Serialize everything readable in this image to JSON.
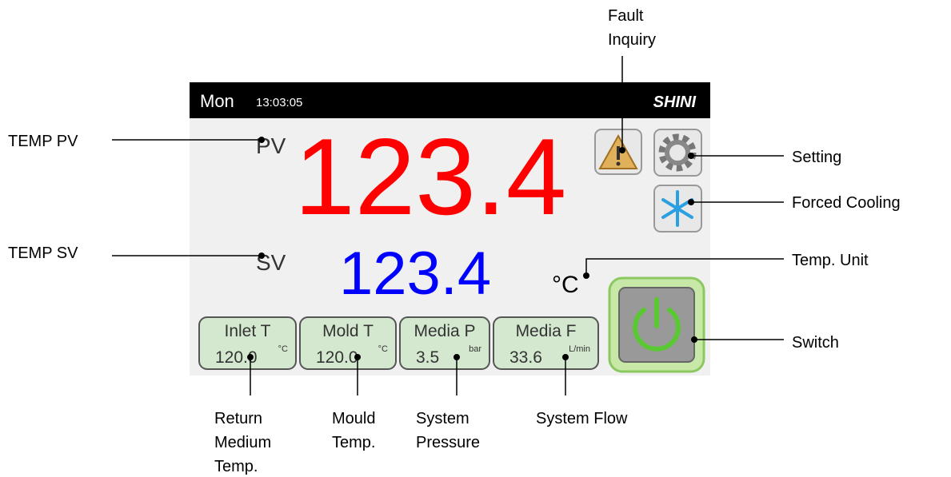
{
  "screen": {
    "day": "Mon",
    "time": "13:03:05",
    "brand": "SHINI",
    "pv_label": "PV",
    "pv_value": "123.4",
    "sv_label": "SV",
    "sv_value": "123.4",
    "unit": "°C",
    "tiles": [
      {
        "name": "Inlet  T",
        "value": "120.0",
        "unit": "°C"
      },
      {
        "name": "Mold  T",
        "value": "120.0",
        "unit": "°C"
      },
      {
        "name": "Media  P",
        "value": "3.5",
        "unit": "bar"
      },
      {
        "name": "Media  F",
        "value": "33.6",
        "unit": "L/min"
      }
    ]
  },
  "callouts": {
    "temp_pv": "TEMP PV",
    "temp_sv": "TEMP SV",
    "fault": [
      "Fault",
      "Inquiry"
    ],
    "setting": "Setting",
    "cooling": "Forced Cooling",
    "unit": "Temp. Unit",
    "switch": "Switch",
    "return": [
      "Return",
      "Medium",
      "Temp."
    ],
    "mould": [
      "Mould",
      "Temp."
    ],
    "pressure": [
      "System",
      "Pressure"
    ],
    "flow": "System Flow"
  }
}
